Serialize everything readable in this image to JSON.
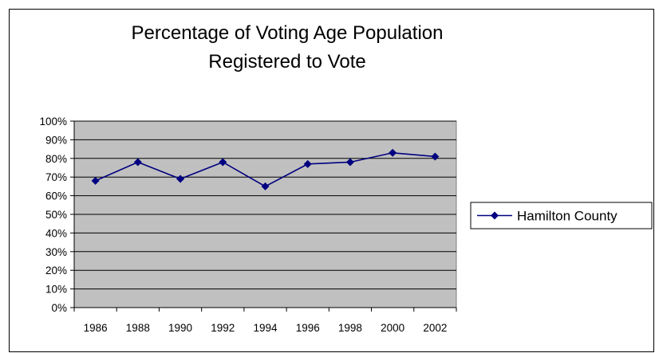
{
  "chart_data": {
    "type": "line",
    "title_lines": [
      "Percentage of Voting Age Population",
      "Registered to Vote"
    ],
    "categories": [
      "1986",
      "1988",
      "1990",
      "1992",
      "1994",
      "1996",
      "1998",
      "2000",
      "2002"
    ],
    "series": [
      {
        "name": "Hamilton County",
        "values": [
          68,
          78,
          69,
          78,
          65,
          77,
          78,
          83,
          81
        ],
        "color": "#000080",
        "marker": "diamond"
      }
    ],
    "y_ticks": [
      "0%",
      "10%",
      "20%",
      "30%",
      "40%",
      "50%",
      "60%",
      "70%",
      "80%",
      "90%",
      "100%"
    ],
    "ylim": [
      0,
      100
    ],
    "grid": true,
    "legend_position": "right",
    "plot_background": "#c0c0c0"
  }
}
